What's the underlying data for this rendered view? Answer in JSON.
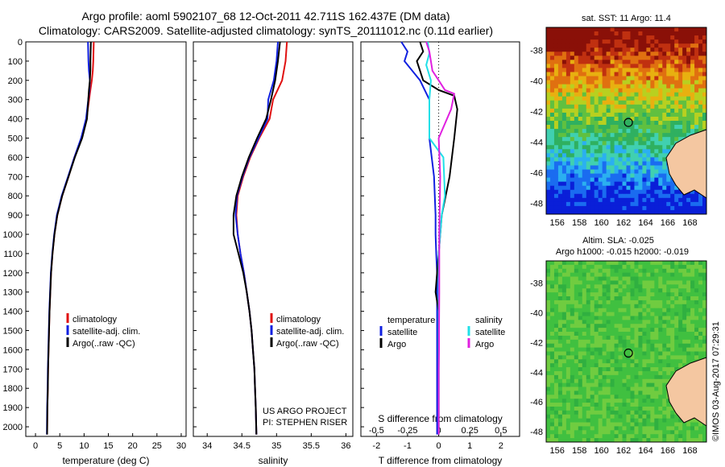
{
  "header": {
    "line1": "Argo profile: aoml 5902107_68 12-Oct-2011 42.711S 162.437E (DM data)",
    "line2": "Climatology: CARS2009. Satellite-adjusted climatology: synTS_20111012.nc (0.11d earlier)"
  },
  "colors": {
    "climatology": "#e01010",
    "satellite": "#1020e0",
    "argo": "#000000",
    "argo_salinity_diff": "#e020e0",
    "satellite_salinity_diff": "#20e0e8",
    "land": "#f4c7a1"
  },
  "watermark": "©IMOS 03-Aug-2017 07:29:31",
  "chart_data": [
    {
      "type": "line",
      "panel": "temperature",
      "xlabel": "temperature (deg C)",
      "xlim": [
        -2,
        31
      ],
      "xticks": [
        0,
        5,
        10,
        15,
        20,
        25,
        30
      ],
      "xtick_labels": [
        "0",
        "5",
        "10",
        "15",
        "20",
        "25",
        "30"
      ],
      "ylim": [
        0,
        2050
      ],
      "yticks": [
        0,
        100,
        200,
        300,
        400,
        500,
        600,
        700,
        800,
        900,
        1000,
        1100,
        1200,
        1300,
        1400,
        1500,
        1600,
        1700,
        1800,
        1900,
        2000
      ],
      "ytick_labels": [
        "0",
        "100",
        "200",
        "300",
        "400",
        "500",
        "600",
        "700",
        "800",
        "900",
        "1000",
        "1100",
        "1200",
        "1300",
        "1400",
        "1500",
        "1600",
        "1700",
        "1800",
        "1900",
        "2000"
      ],
      "legend": [
        "climatology",
        "satellite-adj. clim.",
        "Argo(..raw -QC)"
      ],
      "series": [
        {
          "name": "climatology",
          "color": "#e01010",
          "x": [
            12.0,
            11.9,
            11.8,
            11.6,
            11.3,
            10.5,
            9.5,
            8.0,
            6.8,
            5.5,
            4.5,
            3.9,
            3.5,
            3.2,
            2.9,
            2.8,
            2.7,
            2.6,
            2.55,
            2.45,
            2.4
          ],
          "y": [
            0,
            100,
            150,
            200,
            250,
            400,
            500,
            600,
            700,
            800,
            900,
            1000,
            1100,
            1200,
            1400,
            1500,
            1600,
            1700,
            1800,
            1900,
            2040
          ]
        },
        {
          "name": "satellite-adj. clim.",
          "color": "#1020e0",
          "x": [
            10.8,
            10.9,
            11.0,
            11.2,
            11.1,
            10.4,
            9.4,
            8.0,
            6.7,
            5.4,
            4.4,
            3.85,
            3.45,
            3.15,
            2.85,
            2.75,
            2.65,
            2.55,
            2.5,
            2.4,
            2.35
          ],
          "y": [
            0,
            100,
            150,
            200,
            250,
            400,
            500,
            600,
            700,
            800,
            900,
            1000,
            1100,
            1200,
            1400,
            1500,
            1600,
            1700,
            1800,
            1900,
            2040
          ]
        },
        {
          "name": "Argo(..raw -QC)",
          "color": "#000000",
          "x": [
            11.4,
            11.3,
            11.3,
            11.2,
            11.0,
            10.6,
            9.6,
            8.1,
            6.8,
            5.5,
            4.5,
            3.9,
            3.5,
            3.2,
            2.9,
            2.8,
            2.7,
            2.6,
            2.55,
            2.45,
            2.4
          ],
          "y": [
            0,
            100,
            150,
            200,
            250,
            400,
            500,
            600,
            700,
            800,
            900,
            1000,
            1100,
            1200,
            1400,
            1500,
            1600,
            1700,
            1800,
            1900,
            2040
          ]
        }
      ],
      "annotations": []
    },
    {
      "type": "line",
      "panel": "salinity",
      "xlabel": "salinity",
      "xlim": [
        33.8,
        36.1
      ],
      "xticks": [
        34,
        34.5,
        35,
        35.5,
        36
      ],
      "xtick_labels": [
        "34",
        "34.5",
        "35",
        "35.5",
        "36"
      ],
      "ylim": [
        0,
        2050
      ],
      "legend": [
        "climatology",
        "satellite-adj. clim.",
        "Argo(..raw -QC)"
      ],
      "series": [
        {
          "name": "climatology",
          "color": "#e01010",
          "x": [
            35.15,
            35.13,
            35.08,
            34.95,
            34.9,
            34.75,
            34.62,
            34.52,
            34.44,
            34.42,
            34.44,
            34.48,
            34.53,
            34.57,
            34.61,
            34.64,
            34.66,
            34.68,
            34.69,
            34.7,
            34.71
          ],
          "y": [
            0,
            100,
            200,
            300,
            400,
            500,
            600,
            700,
            800,
            900,
            1000,
            1100,
            1200,
            1300,
            1400,
            1500,
            1600,
            1700,
            1800,
            1900,
            2040
          ]
        },
        {
          "name": "satellite-adj. clim.",
          "color": "#1020e0",
          "x": [
            35.02,
            35.0,
            34.96,
            34.88,
            34.87,
            34.74,
            34.61,
            34.51,
            34.43,
            34.41,
            34.44,
            34.48,
            34.53,
            34.57,
            34.61,
            34.64,
            34.66,
            34.68,
            34.69,
            34.7,
            34.71
          ],
          "y": [
            0,
            100,
            200,
            300,
            400,
            500,
            600,
            700,
            800,
            900,
            1000,
            1100,
            1200,
            1300,
            1400,
            1500,
            1600,
            1700,
            1800,
            1900,
            2040
          ]
        },
        {
          "name": "Argo(..raw -QC)",
          "color": "#000000",
          "x": [
            35.05,
            35.02,
            34.98,
            34.92,
            34.85,
            34.72,
            34.6,
            34.5,
            34.42,
            34.38,
            34.38,
            34.45,
            34.52,
            34.57,
            34.61,
            34.64,
            34.66,
            34.68,
            34.69,
            34.7,
            34.71
          ],
          "y": [
            0,
            100,
            200,
            300,
            400,
            500,
            600,
            700,
            800,
            900,
            1000,
            1100,
            1200,
            1300,
            1400,
            1500,
            1600,
            1700,
            1800,
            1900,
            2040
          ]
        }
      ],
      "annotations": [
        "US ARGO PROJECT",
        "PI: STEPHEN RISER"
      ]
    },
    {
      "type": "line",
      "panel": "difference",
      "xlabel": "T difference from climatology",
      "xlabel_top": "S difference from climatology",
      "xlim": [
        -2.5,
        2.6
      ],
      "xticks": [
        -2,
        -1,
        0,
        1,
        2
      ],
      "xtick_labels": [
        "-2",
        "-1",
        "0",
        "1",
        "2"
      ],
      "s_ticks": [
        -0.5,
        -0.25,
        0,
        0.25,
        0.5
      ],
      "s_tick_labels": [
        "-0.5",
        "-0.25",
        "0",
        "0.25",
        "0.5"
      ],
      "ylim": [
        0,
        2050
      ],
      "legend_groups": [
        {
          "title": "temperature",
          "items": [
            "satellite",
            "Argo"
          ]
        },
        {
          "title": "salinity",
          "items": [
            "satellite",
            "Argo"
          ]
        }
      ],
      "series": [
        {
          "name": "temperature satellite",
          "color": "#1020e0",
          "x": [
            -1.2,
            -1.0,
            -1.1,
            -0.6,
            -0.3,
            -0.3,
            -0.15,
            -0.1,
            -0.1,
            -0.08,
            -0.05,
            -0.05,
            -0.05,
            -0.05,
            -0.05,
            -0.05,
            -0.05,
            -0.05,
            -0.05,
            -0.05,
            -0.05
          ],
          "y": [
            0,
            50,
            100,
            200,
            300,
            500,
            700,
            900,
            1000,
            1100,
            1200,
            1300,
            1400,
            1500,
            1600,
            1700,
            1800,
            1900,
            2000,
            2040,
            2040
          ]
        },
        {
          "name": "temperature Argo",
          "color": "#000000",
          "x": [
            -0.6,
            -0.5,
            -0.7,
            -0.5,
            0.0,
            0.5,
            0.6,
            0.5,
            0.35,
            0.1,
            0.0,
            -0.05,
            -0.1,
            0.0,
            0.0,
            0.0,
            0.0,
            0.0,
            0.0,
            0.0,
            0.0
          ],
          "y": [
            0,
            50,
            100,
            200,
            250,
            280,
            350,
            500,
            700,
            900,
            1100,
            1200,
            1300,
            1400,
            1500,
            1600,
            1700,
            1800,
            1900,
            2000,
            2040
          ]
        },
        {
          "name": "salinity satellite",
          "color": "#20e0e8",
          "x": [
            -0.35,
            -0.3,
            -0.4,
            -0.25,
            -0.3,
            -0.3,
            0.15,
            0.2,
            0.1,
            0.05,
            0.0,
            0.0,
            0.0,
            0.0,
            0.0,
            0.0,
            0.0,
            0.0,
            0.0,
            0.0,
            0.0
          ],
          "y": [
            0,
            60,
            120,
            200,
            300,
            500,
            600,
            800,
            900,
            1000,
            1100,
            1200,
            1300,
            1400,
            1500,
            1600,
            1700,
            1800,
            1900,
            2000,
            2040
          ]
        },
        {
          "name": "salinity Argo",
          "color": "#e020e0",
          "x": [
            -0.4,
            -0.3,
            -0.2,
            0.0,
            0.2,
            0.5,
            0.4,
            0.0,
            0.05,
            0.03,
            0.02,
            0.02,
            0.02,
            0.01,
            0.01,
            0.0,
            0.0,
            0.0,
            0.0,
            0.0,
            0.0
          ],
          "y": [
            0,
            50,
            150,
            200,
            250,
            270,
            350,
            500,
            700,
            900,
            1000,
            1100,
            1300,
            1500,
            1600,
            1700,
            1800,
            1900,
            2000,
            2040,
            2040
          ]
        }
      ]
    }
  ],
  "maps": [
    {
      "title": "sat. SST: 11 Argo: 11.4",
      "lon_labels": [
        "156",
        "158",
        "160",
        "162",
        "164",
        "166",
        "168"
      ],
      "lat_labels": [
        "-38",
        "-40",
        "-42",
        "-44",
        "-46",
        "-48"
      ],
      "lon_range": [
        155.0,
        169.5
      ],
      "lat_range": [
        -36.5,
        -48.7
      ],
      "marker": {
        "lon": 162.44,
        "lat": -42.71
      }
    },
    {
      "title": "Altim. SLA: -0.025",
      "subtitle": "Argo h1000: -0.015 h2000: -0.019",
      "lon_labels": [
        "156",
        "158",
        "160",
        "162",
        "164",
        "166",
        "168"
      ],
      "lat_labels": [
        "-38",
        "-40",
        "-42",
        "-44",
        "-46",
        "-48"
      ],
      "lon_range": [
        155.0,
        169.5
      ],
      "lat_range": [
        -36.5,
        -48.7
      ],
      "marker": {
        "lon": 162.44,
        "lat": -42.71
      }
    }
  ]
}
